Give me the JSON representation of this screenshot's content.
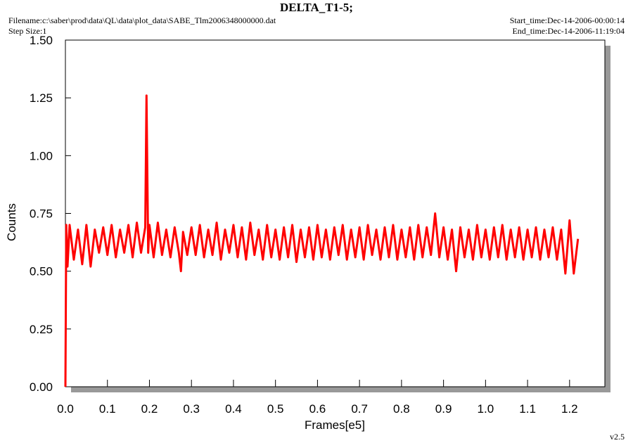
{
  "chart_data": {
    "type": "line",
    "title": "DELTA_T1-5;",
    "filename": "Filename:c:\\saber\\prod\\data\\QL\\data\\plot_data\\SABE_Tlm2006348000000.dat",
    "step_size": "Step Size:1",
    "start_time": "Start_time:Dec-14-2006-00:00:14",
    "end_time": "End_time:Dec-14-2006-11:19:04",
    "version": "v2.5",
    "x_label": "Frames[e5]",
    "y_label": "Counts",
    "xlim": [
      0,
      1.284
    ],
    "ylim": [
      0,
      1.5
    ],
    "xticks": [
      {
        "value": 0,
        "label": "0.0"
      },
      0.1,
      0.2,
      0.3,
      0.4,
      0.5,
      0.6,
      0.7,
      0.8,
      0.9,
      {
        "value": 1,
        "label": "1.0"
      },
      1.1,
      1.2
    ],
    "yticks": [
      {
        "value": 0,
        "label": "0.00"
      },
      0.25,
      {
        "value": 0.5,
        "label": "0.50"
      },
      0.75,
      {
        "value": 1,
        "label": "1.00"
      },
      1.25,
      {
        "value": 1.5,
        "label": "1.50"
      }
    ],
    "series": [
      {
        "color": "#ff0000",
        "x": [
          0,
          0.002,
          0.005,
          0.01,
          0.02,
          0.03,
          0.04,
          0.05,
          0.06,
          0.07,
          0.08,
          0.09,
          0.1,
          0.11,
          0.12,
          0.13,
          0.14,
          0.15,
          0.16,
          0.17,
          0.18,
          0.19,
          0.193,
          0.197,
          0.2,
          0.21,
          0.22,
          0.23,
          0.24,
          0.25,
          0.26,
          0.27,
          0.275,
          0.28,
          0.29,
          0.3,
          0.31,
          0.32,
          0.33,
          0.34,
          0.35,
          0.36,
          0.37,
          0.38,
          0.39,
          0.4,
          0.41,
          0.42,
          0.43,
          0.44,
          0.45,
          0.46,
          0.47,
          0.48,
          0.49,
          0.5,
          0.51,
          0.52,
          0.53,
          0.54,
          0.55,
          0.56,
          0.57,
          0.58,
          0.59,
          0.6,
          0.61,
          0.62,
          0.63,
          0.64,
          0.65,
          0.66,
          0.67,
          0.68,
          0.69,
          0.7,
          0.71,
          0.72,
          0.73,
          0.74,
          0.75,
          0.76,
          0.77,
          0.78,
          0.79,
          0.8,
          0.81,
          0.82,
          0.83,
          0.84,
          0.85,
          0.86,
          0.87,
          0.88,
          0.89,
          0.9,
          0.91,
          0.92,
          0.93,
          0.94,
          0.95,
          0.96,
          0.97,
          0.98,
          0.99,
          1,
          1.01,
          1.02,
          1.03,
          1.04,
          1.05,
          1.06,
          1.07,
          1.08,
          1.09,
          1.1,
          1.11,
          1.12,
          1.13,
          1.14,
          1.15,
          1.16,
          1.17,
          1.18,
          1.19,
          1.2,
          1.21,
          1.22
        ],
        "values": [
          0,
          0.7,
          0.52,
          0.7,
          0.55,
          0.68,
          0.53,
          0.7,
          0.52,
          0.68,
          0.58,
          0.69,
          0.57,
          0.7,
          0.56,
          0.68,
          0.58,
          0.7,
          0.56,
          0.71,
          0.58,
          0.69,
          1.26,
          0.58,
          0.7,
          0.56,
          0.71,
          0.57,
          0.68,
          0.56,
          0.69,
          0.58,
          0.5,
          0.67,
          0.57,
          0.69,
          0.57,
          0.7,
          0.56,
          0.68,
          0.57,
          0.71,
          0.55,
          0.68,
          0.58,
          0.7,
          0.56,
          0.69,
          0.55,
          0.71,
          0.57,
          0.68,
          0.55,
          0.7,
          0.56,
          0.68,
          0.55,
          0.69,
          0.56,
          0.7,
          0.54,
          0.68,
          0.56,
          0.69,
          0.55,
          0.7,
          0.56,
          0.68,
          0.55,
          0.69,
          0.57,
          0.7,
          0.55,
          0.68,
          0.56,
          0.69,
          0.55,
          0.7,
          0.57,
          0.68,
          0.55,
          0.69,
          0.56,
          0.7,
          0.55,
          0.68,
          0.56,
          0.69,
          0.55,
          0.7,
          0.56,
          0.69,
          0.57,
          0.75,
          0.56,
          0.69,
          0.55,
          0.68,
          0.5,
          0.69,
          0.56,
          0.68,
          0.55,
          0.7,
          0.56,
          0.68,
          0.55,
          0.69,
          0.56,
          0.7,
          0.55,
          0.68,
          0.56,
          0.69,
          0.55,
          0.68,
          0.56,
          0.69,
          0.55,
          0.68,
          0.56,
          0.69,
          0.55,
          0.68,
          0.49,
          0.72,
          0.49,
          0.64
        ]
      }
    ]
  }
}
